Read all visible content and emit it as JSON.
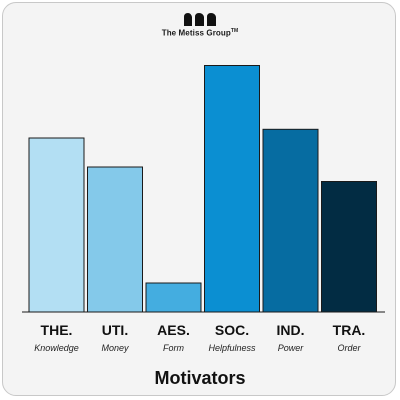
{
  "brand": {
    "name": "The Metiss Group",
    "mark": "TM"
  },
  "chart_data": {
    "type": "bar",
    "title": "Motivators",
    "categories": [
      "THE.",
      "UTI.",
      "AES.",
      "SOC.",
      "IND.",
      "TRA."
    ],
    "subtitles": [
      "Knowledge",
      "Money",
      "Form",
      "Helpfulness",
      "Power",
      "Order"
    ],
    "values": [
      60,
      50,
      10,
      85,
      63,
      45
    ],
    "ylim": [
      0,
      100
    ],
    "colors": [
      "#b3dff3",
      "#84c9ea",
      "#44ade0",
      "#0b8fd2",
      "#066ca1",
      "#022c43"
    ],
    "grid": false,
    "legend": "none"
  }
}
